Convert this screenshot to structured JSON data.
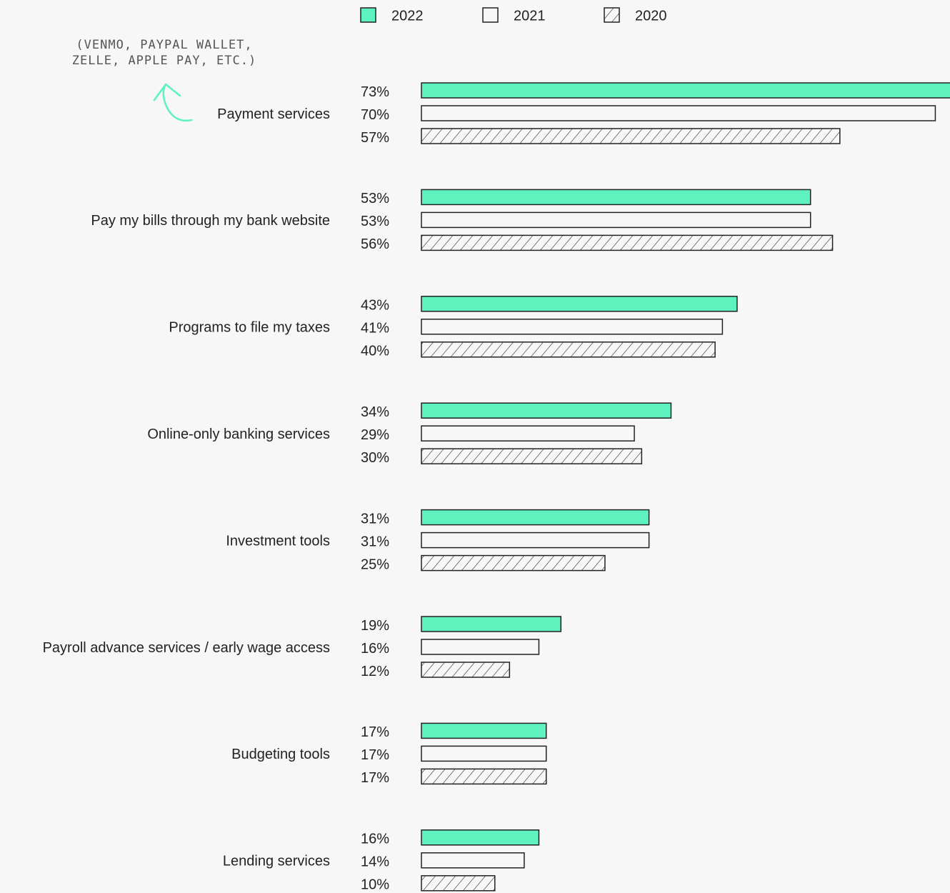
{
  "chart_data": {
    "type": "bar",
    "orientation": "horizontal",
    "annotation": [
      "(VENMO, PAYPAL WALLET,",
      "ZELLE, APPLE PAY, ETC.)"
    ],
    "categories": [
      "Payment services",
      "Pay my bills through my bank website",
      "Programs to file my taxes",
      "Online-only banking services",
      "Investment tools",
      "Payroll advance services / early wage access",
      "Budgeting tools",
      "Lending services"
    ],
    "series": [
      {
        "name": "2022",
        "color": "#5ef2bf",
        "values": [
          73,
          53,
          43,
          34,
          31,
          19,
          17,
          16
        ],
        "value_labels": [
          "73%",
          "53%",
          "43%",
          "34%",
          "31%",
          "19%",
          "17%",
          "16%"
        ]
      },
      {
        "name": "2021",
        "color": "#f7f7f7",
        "values": [
          70,
          53,
          41,
          29,
          31,
          16,
          17,
          14
        ],
        "value_labels": [
          "70%",
          "53%",
          "41%",
          "29%",
          "31%",
          "16%",
          "17%",
          "14%"
        ]
      },
      {
        "name": "2020",
        "color": "#f7f7f7",
        "hatch": true,
        "values": [
          57,
          56,
          40,
          30,
          25,
          12,
          17,
          10
        ],
        "value_labels": [
          "57%",
          "56%",
          "40%",
          "30%",
          "25%",
          "12%",
          "17%",
          "10%"
        ]
      }
    ],
    "xlim": [
      0,
      72
    ],
    "legend": "top"
  }
}
